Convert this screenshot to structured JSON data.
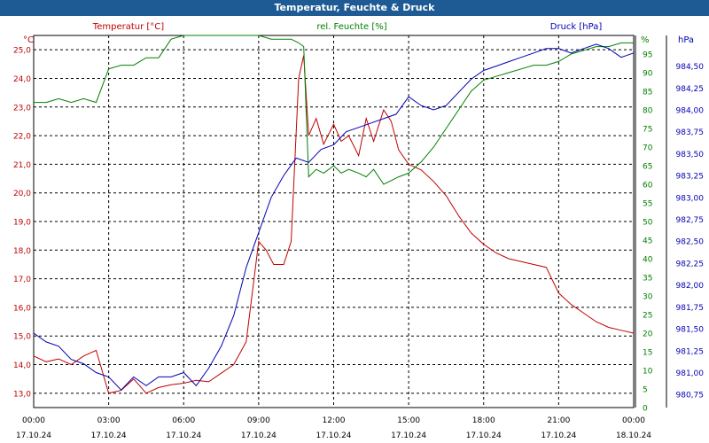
{
  "window": {
    "title": "Temperatur, Feuchte & Druck"
  },
  "legend": {
    "temperature": "Temperatur [°C]",
    "humidity": "rel. Feuchte [%]",
    "pressure": "Druck [hPa]"
  },
  "colors": {
    "temperature": "#c00000",
    "humidity": "#008000",
    "pressure": "#0000b4",
    "grid": "#000000",
    "titlebar": "#1e5a94"
  },
  "chart_data": {
    "type": "line",
    "title": "Temperatur, Feuchte & Druck",
    "xlabel": "",
    "x_range_hours": [
      0,
      24
    ],
    "x_ticks": [
      {
        "hour": 0,
        "time": "00:00",
        "date": "17.10.24"
      },
      {
        "hour": 3,
        "time": "03:00",
        "date": "17.10.24"
      },
      {
        "hour": 6,
        "time": "06:00",
        "date": "17.10.24"
      },
      {
        "hour": 9,
        "time": "09:00",
        "date": "17.10.24"
      },
      {
        "hour": 12,
        "time": "12:00",
        "date": "17.10.24"
      },
      {
        "hour": 15,
        "time": "15:00",
        "date": "17.10.24"
      },
      {
        "hour": 18,
        "time": "18:00",
        "date": "17.10.24"
      },
      {
        "hour": 21,
        "time": "21:00",
        "date": "17.10.24"
      },
      {
        "hour": 24,
        "time": "00:00",
        "date": "18.10.24"
      }
    ],
    "axes": {
      "temperature": {
        "unit": "°C",
        "range": [
          12.5,
          25.5
        ],
        "ticks": [
          "13.0",
          "14.0",
          "15.0",
          "16.0",
          "17.0",
          "18.0",
          "19.0",
          "20.0",
          "21.0",
          "22.0",
          "23.0",
          "24.0",
          "25.0"
        ],
        "tick_labels": [
          "13,0",
          "14,0",
          "15,0",
          "16,0",
          "17,0",
          "18,0",
          "19,0",
          "20,0",
          "21,0",
          "22,0",
          "23,0",
          "24,0",
          "25,0"
        ]
      },
      "humidity": {
        "unit": "%",
        "range": [
          0,
          100
        ],
        "ticks": [
          "0",
          "5",
          "10",
          "15",
          "20",
          "25",
          "30",
          "35",
          "40",
          "45",
          "50",
          "55",
          "60",
          "65",
          "70",
          "75",
          "80",
          "85",
          "90",
          "95"
        ]
      },
      "pressure": {
        "unit": "hPa",
        "range": [
          980.6,
          984.85
        ],
        "ticks": [
          "980.75",
          "981.00",
          "981.25",
          "981.50",
          "981.75",
          "982.00",
          "982.25",
          "982.50",
          "982.75",
          "983.00",
          "983.25",
          "983.50",
          "983.75",
          "984.00",
          "984.25",
          "984.50"
        ],
        "tick_labels": [
          "980,75",
          "981,00",
          "981,25",
          "981,50",
          "981,75",
          "982,00",
          "982,25",
          "982,50",
          "982,75",
          "983,00",
          "983,25",
          "983,50",
          "983,75",
          "984,00",
          "984,25",
          "984,50"
        ]
      }
    },
    "series": [
      {
        "name": "Temperatur [°C]",
        "key": "temperature",
        "points": [
          [
            0,
            14.3
          ],
          [
            0.5,
            14.1
          ],
          [
            1,
            14.2
          ],
          [
            1.5,
            14.0
          ],
          [
            2,
            14.3
          ],
          [
            2.5,
            14.5
          ],
          [
            3,
            13.0
          ],
          [
            3.5,
            13.1
          ],
          [
            4,
            13.5
          ],
          [
            4.5,
            13.0
          ],
          [
            5,
            13.2
          ],
          [
            5.5,
            13.3
          ],
          [
            6,
            13.35
          ],
          [
            6.5,
            13.45
          ],
          [
            7,
            13.4
          ],
          [
            7.5,
            13.7
          ],
          [
            8,
            14.0
          ],
          [
            8.5,
            14.8
          ],
          [
            9,
            18.3
          ],
          [
            9.3,
            18.0
          ],
          [
            9.6,
            17.5
          ],
          [
            10,
            17.5
          ],
          [
            10.3,
            18.3
          ],
          [
            10.6,
            24.0
          ],
          [
            10.8,
            24.8
          ],
          [
            11,
            22.0
          ],
          [
            11.3,
            22.6
          ],
          [
            11.6,
            21.7
          ],
          [
            12,
            22.4
          ],
          [
            12.3,
            21.8
          ],
          [
            12.6,
            22.0
          ],
          [
            13,
            21.3
          ],
          [
            13.3,
            22.6
          ],
          [
            13.6,
            21.8
          ],
          [
            14,
            22.9
          ],
          [
            14.3,
            22.5
          ],
          [
            14.6,
            21.5
          ],
          [
            15,
            21.0
          ],
          [
            15.5,
            20.8
          ],
          [
            16,
            20.4
          ],
          [
            16.5,
            19.9
          ],
          [
            17,
            19.2
          ],
          [
            17.5,
            18.6
          ],
          [
            18,
            18.2
          ],
          [
            18.5,
            17.9
          ],
          [
            19,
            17.7
          ],
          [
            19.5,
            17.6
          ],
          [
            20,
            17.5
          ],
          [
            20.5,
            17.4
          ],
          [
            21,
            16.5
          ],
          [
            21.5,
            16.1
          ],
          [
            22,
            15.8
          ],
          [
            22.5,
            15.5
          ],
          [
            23,
            15.3
          ],
          [
            23.5,
            15.2
          ],
          [
            24,
            15.1
          ]
        ]
      },
      {
        "name": "rel. Feuchte [%]",
        "key": "humidity",
        "points": [
          [
            0,
            82
          ],
          [
            0.5,
            82
          ],
          [
            1,
            83
          ],
          [
            1.5,
            82
          ],
          [
            2,
            83
          ],
          [
            2.5,
            82
          ],
          [
            3,
            91
          ],
          [
            3.5,
            92
          ],
          [
            4,
            92
          ],
          [
            4.5,
            94
          ],
          [
            5,
            94
          ],
          [
            5.5,
            99
          ],
          [
            6,
            100
          ],
          [
            7,
            100
          ],
          [
            9,
            100
          ],
          [
            9.5,
            99
          ],
          [
            10,
            99
          ],
          [
            10.3,
            99
          ],
          [
            10.6,
            98
          ],
          [
            10.8,
            97
          ],
          [
            11,
            62
          ],
          [
            11.3,
            64
          ],
          [
            11.6,
            63
          ],
          [
            12,
            65
          ],
          [
            12.3,
            63
          ],
          [
            12.6,
            64
          ],
          [
            13,
            63
          ],
          [
            13.3,
            62
          ],
          [
            13.6,
            64
          ],
          [
            14,
            60
          ],
          [
            14.3,
            61
          ],
          [
            14.6,
            62
          ],
          [
            15,
            63
          ],
          [
            15.5,
            66
          ],
          [
            16,
            70
          ],
          [
            16.5,
            75
          ],
          [
            17,
            80
          ],
          [
            17.5,
            85
          ],
          [
            18,
            88
          ],
          [
            18.5,
            89
          ],
          [
            19,
            90
          ],
          [
            19.5,
            91
          ],
          [
            20,
            92
          ],
          [
            20.5,
            92
          ],
          [
            21,
            93
          ],
          [
            21.5,
            95
          ],
          [
            22,
            96
          ],
          [
            22.5,
            97
          ],
          [
            23,
            97
          ],
          [
            23.5,
            98
          ],
          [
            24,
            98
          ]
        ]
      },
      {
        "name": "Druck [hPa]",
        "key": "pressure",
        "points": [
          [
            0,
            981.45
          ],
          [
            0.5,
            981.35
          ],
          [
            1,
            981.3
          ],
          [
            1.5,
            981.15
          ],
          [
            2,
            981.1
          ],
          [
            2.5,
            981.0
          ],
          [
            3,
            980.95
          ],
          [
            3.5,
            980.8
          ],
          [
            4,
            980.95
          ],
          [
            4.5,
            980.85
          ],
          [
            5,
            980.95
          ],
          [
            5.5,
            980.95
          ],
          [
            6,
            981.0
          ],
          [
            6.5,
            980.85
          ],
          [
            7,
            981.05
          ],
          [
            7.5,
            981.3
          ],
          [
            8,
            981.65
          ],
          [
            8.5,
            982.2
          ],
          [
            9,
            982.6
          ],
          [
            9.5,
            983.0
          ],
          [
            10,
            983.25
          ],
          [
            10.5,
            983.45
          ],
          [
            11,
            983.4
          ],
          [
            11.5,
            983.55
          ],
          [
            12,
            983.6
          ],
          [
            12.5,
            983.75
          ],
          [
            13,
            983.8
          ],
          [
            13.5,
            983.85
          ],
          [
            14,
            983.9
          ],
          [
            14.5,
            983.95
          ],
          [
            15,
            984.15
          ],
          [
            15.5,
            984.05
          ],
          [
            16,
            984.0
          ],
          [
            16.5,
            984.05
          ],
          [
            17,
            984.2
          ],
          [
            17.5,
            984.35
          ],
          [
            18,
            984.45
          ],
          [
            18.5,
            984.5
          ],
          [
            19,
            984.55
          ],
          [
            19.5,
            984.6
          ],
          [
            20,
            984.65
          ],
          [
            20.5,
            984.7
          ],
          [
            21,
            984.7
          ],
          [
            21.5,
            984.65
          ],
          [
            22,
            984.7
          ],
          [
            22.5,
            984.75
          ],
          [
            23,
            984.7
          ],
          [
            23.5,
            984.6
          ],
          [
            24,
            984.65
          ]
        ]
      }
    ]
  }
}
